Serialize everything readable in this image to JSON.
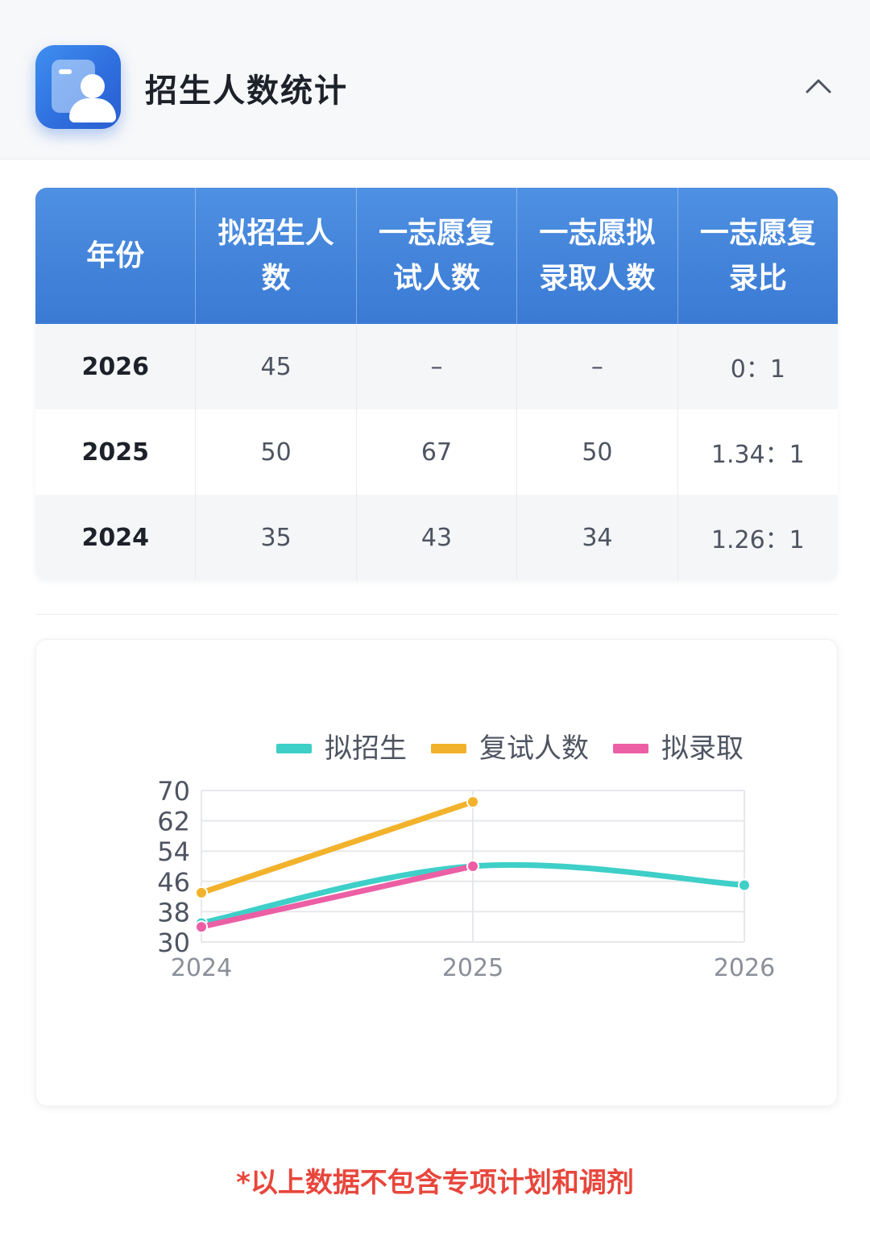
{
  "header": {
    "title": "招生人数统计",
    "icon": "student-profile-icon",
    "toggle_icon": "chevron-up-icon"
  },
  "table": {
    "headers": [
      "年份",
      "拟招生人数",
      "一志愿复试人数",
      "一志愿拟录取人数",
      "一志愿复录比"
    ],
    "rows": [
      [
        "2026",
        "45",
        "–",
        "–",
        "0：1"
      ],
      [
        "2025",
        "50",
        "67",
        "50",
        "1.34：1"
      ],
      [
        "2024",
        "35",
        "43",
        "34",
        "1.26：1"
      ]
    ]
  },
  "chart_data": {
    "type": "line",
    "x": [
      "2024",
      "2025",
      "2026"
    ],
    "ylim": [
      30,
      70
    ],
    "yticks": [
      "70",
      "62",
      "54",
      "46",
      "38",
      "30"
    ],
    "grid": true,
    "legend_position": "top",
    "series": [
      {
        "name": "拟招生",
        "color": "#3ecfc8",
        "values": [
          35,
          50,
          45
        ],
        "smooth": true
      },
      {
        "name": "复试人数",
        "color": "#f2b22b",
        "values": [
          43,
          67,
          null
        ],
        "smooth": false
      },
      {
        "name": "拟录取",
        "color": "#ec5fa5",
        "values": [
          34,
          50,
          null
        ],
        "smooth": false
      }
    ]
  },
  "footnote": "*以上数据不包含专项计划和调剂"
}
